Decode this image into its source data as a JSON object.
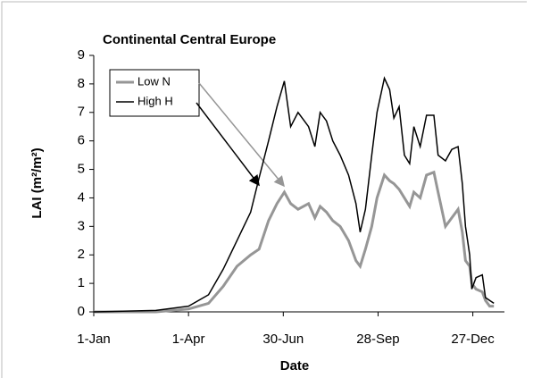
{
  "chart_data": {
    "type": "line",
    "title": "Continental Central Europe",
    "x_label": "Date",
    "y_label": "LAI (m²/m²)",
    "x": [
      1,
      60,
      91,
      110,
      124,
      137,
      150,
      158,
      167,
      175,
      182,
      188,
      195,
      205,
      211,
      216,
      222,
      228,
      235,
      243,
      250,
      254,
      259,
      265,
      270,
      277,
      282,
      286,
      291,
      296,
      301,
      305,
      311,
      317,
      324,
      328,
      335,
      341,
      347,
      351,
      354,
      358,
      360,
      364,
      370,
      373,
      377,
      381
    ],
    "series": [
      {
        "name": "Low N",
        "color": "#969696",
        "values": [
          0,
          0,
          0.1,
          0.3,
          0.9,
          1.6,
          2.0,
          2.2,
          3.2,
          3.8,
          4.2,
          3.8,
          3.6,
          3.8,
          3.3,
          3.7,
          3.5,
          3.2,
          3.0,
          2.5,
          1.8,
          1.6,
          2.2,
          3.0,
          4.0,
          4.8,
          4.6,
          4.5,
          4.3,
          4.0,
          3.7,
          4.2,
          4.0,
          4.8,
          4.9,
          4.2,
          3.0,
          3.3,
          3.6,
          2.8,
          1.8,
          1.6,
          1.0,
          0.8,
          0.7,
          0.4,
          0.2,
          0.2
        ]
      },
      {
        "name": "High H",
        "color": "#000000",
        "values": [
          0,
          0.05,
          0.2,
          0.6,
          1.5,
          2.5,
          3.5,
          4.7,
          6.0,
          7.2,
          8.1,
          6.5,
          7.0,
          6.5,
          5.8,
          7.0,
          6.7,
          6.0,
          5.5,
          4.8,
          3.8,
          2.8,
          3.6,
          5.5,
          7.0,
          8.2,
          7.8,
          6.8,
          7.2,
          5.5,
          5.2,
          6.5,
          5.8,
          6.9,
          6.9,
          5.5,
          5.3,
          5.7,
          5.8,
          4.5,
          3.0,
          2.0,
          0.8,
          1.2,
          1.3,
          0.5,
          0.4,
          0.3
        ]
      }
    ],
    "xlim": [
      1,
      391
    ],
    "xticks": [
      {
        "value": 1,
        "label": "1-Jan"
      },
      {
        "value": 91,
        "label": "1-Apr"
      },
      {
        "value": 181,
        "label": "30-Jun"
      },
      {
        "value": 271,
        "label": "28-Sep"
      },
      {
        "value": 361,
        "label": "27-Dec"
      }
    ],
    "ylim": [
      0,
      9
    ],
    "yticks": [
      0,
      1,
      2,
      3,
      4,
      5,
      6,
      7,
      8,
      9
    ],
    "grid": false
  }
}
